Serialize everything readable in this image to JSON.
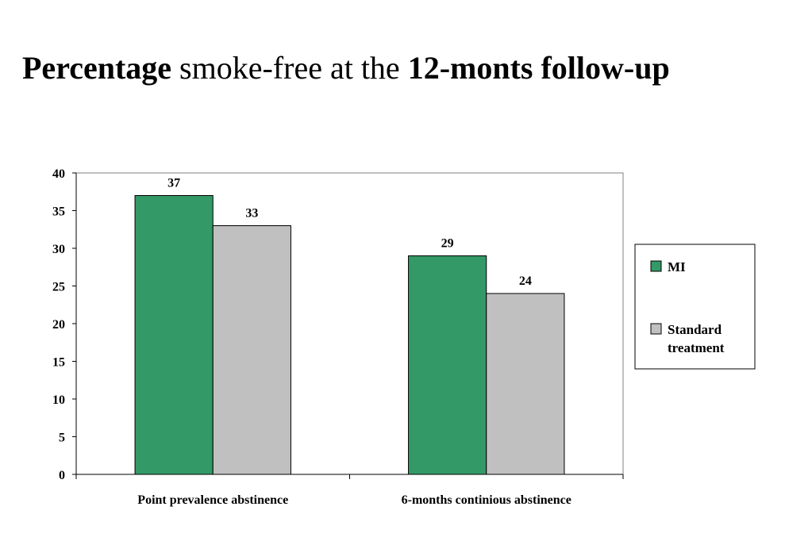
{
  "title": {
    "part1": "Percentage",
    "part2": " smoke-free at the ",
    "part3": "12-monts follow-up"
  },
  "chart_data": {
    "type": "bar",
    "title": "Percentage smoke-free at the 12-monts follow-up",
    "categories": [
      "Point prevalence abstinence",
      "6-months continious abstinence"
    ],
    "series": [
      {
        "name": "MI",
        "values": [
          37,
          29
        ],
        "color": "#339966"
      },
      {
        "name": "Standard treatment",
        "name_lines": [
          "Standard",
          "treatment"
        ],
        "values": [
          33,
          24
        ],
        "color": "#c0c0c0"
      }
    ],
    "yticks": [
      0,
      5,
      10,
      15,
      20,
      25,
      30,
      35,
      40
    ],
    "ylim": [
      0,
      40
    ],
    "xlabel": "",
    "ylabel": "",
    "grid": false,
    "legend": "right"
  }
}
